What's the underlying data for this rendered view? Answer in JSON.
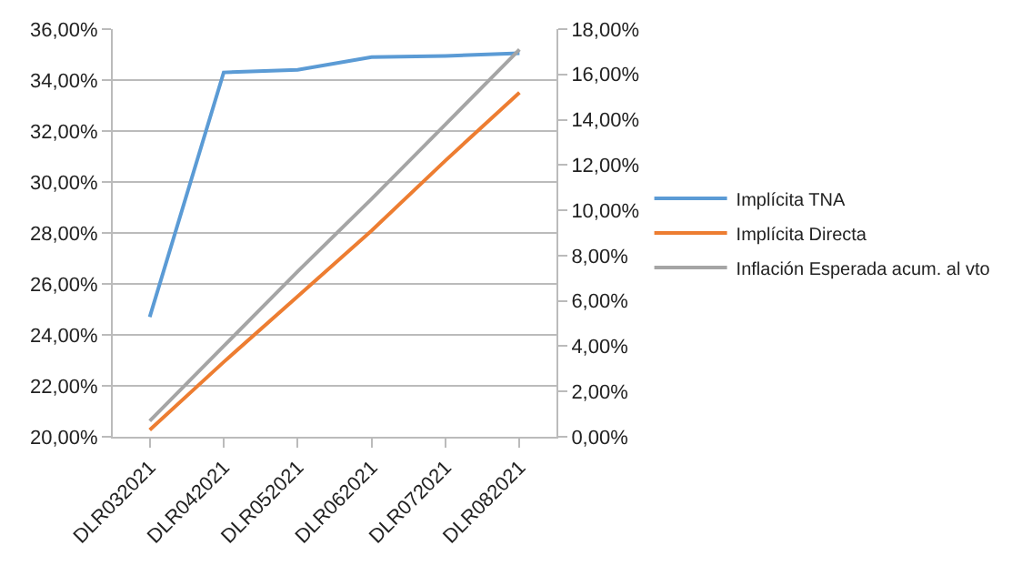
{
  "chart_data": {
    "type": "line",
    "categories": [
      "DLR032021",
      "DLR042021",
      "DLR052021",
      "DLR062021",
      "DLR072021",
      "DLR082021"
    ],
    "series": [
      {
        "name": "Implícita TNA",
        "color": "#5b9bd5",
        "values": [
          24.7,
          34.3,
          34.4,
          34.9,
          34.95,
          35.05
        ]
      },
      {
        "name": "Implícita Directa",
        "color": "#ed7d31",
        "axis": "y2",
        "values": [
          0.3,
          3.3,
          6.2,
          9.1,
          12.2,
          15.2
        ]
      },
      {
        "name": "Inflación Esperada acum. al vto",
        "color": "#a5a5a5",
        "axis": "y2",
        "values": [
          0.7,
          4.0,
          7.3,
          10.5,
          13.8,
          17.1
        ]
      }
    ],
    "ylim": [
      20,
      36
    ],
    "yticks": [
      {
        "value": 20,
        "label": "20,00%"
      },
      {
        "value": 22,
        "label": "22,00%"
      },
      {
        "value": 24,
        "label": "24,00%"
      },
      {
        "value": 26,
        "label": "26,00%"
      },
      {
        "value": 28,
        "label": "28,00%"
      },
      {
        "value": 30,
        "label": "30,00%"
      },
      {
        "value": 32,
        "label": "32,00%"
      },
      {
        "value": 34,
        "label": "34,00%"
      },
      {
        "value": 36,
        "label": "36,00%"
      }
    ],
    "y2lim": [
      0,
      18
    ],
    "y2ticks": [
      {
        "value": 0,
        "label": "0,00%"
      },
      {
        "value": 2,
        "label": "2,00%"
      },
      {
        "value": 4,
        "label": "4,00%"
      },
      {
        "value": 6,
        "label": "6,00%"
      },
      {
        "value": 8,
        "label": "8,00%"
      },
      {
        "value": 10,
        "label": "10,00%"
      },
      {
        "value": 12,
        "label": "12,00%"
      },
      {
        "value": 14,
        "label": "14,00%"
      },
      {
        "value": 16,
        "label": "16,00%"
      },
      {
        "value": 18,
        "label": "18,00%"
      }
    ],
    "grid": "y",
    "legend": "right",
    "marker": "none",
    "line_style": "solid"
  }
}
